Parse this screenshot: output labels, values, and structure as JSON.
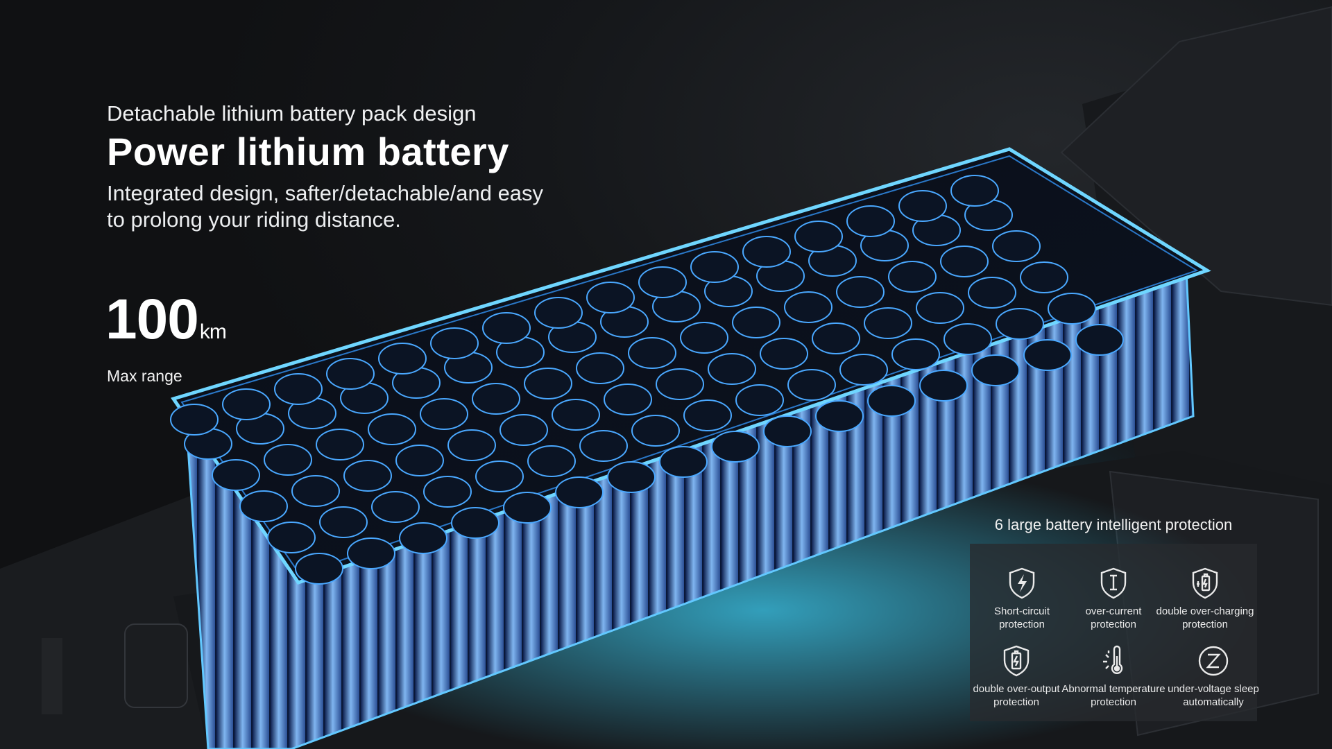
{
  "hero": {
    "kicker": "Detachable lithium battery pack design",
    "headline": "Power lithium battery",
    "description": "Integrated design, safter/detachable/and easy to prolong your riding distance."
  },
  "range": {
    "value": "100",
    "unit": "km",
    "label": "Max range"
  },
  "protection": {
    "title": "6 large battery intelligent protection",
    "items": [
      {
        "icon": "lightning-shield-icon",
        "label": "Short-circuit protection"
      },
      {
        "icon": "current-shield-icon",
        "label": "over-current protection"
      },
      {
        "icon": "charging-battery-shield-icon",
        "label": "double over-charging protection"
      },
      {
        "icon": "battery-shield-icon",
        "label": "double over-output protection"
      },
      {
        "icon": "thermometer-icon",
        "label": "Abnormal temperature protection"
      },
      {
        "icon": "sleep-z-icon",
        "label": "under-voltage sleep automatically"
      }
    ]
  },
  "colors": {
    "background": "#121416",
    "accent_glow": "#2fb6ff",
    "text": "#ffffff"
  }
}
